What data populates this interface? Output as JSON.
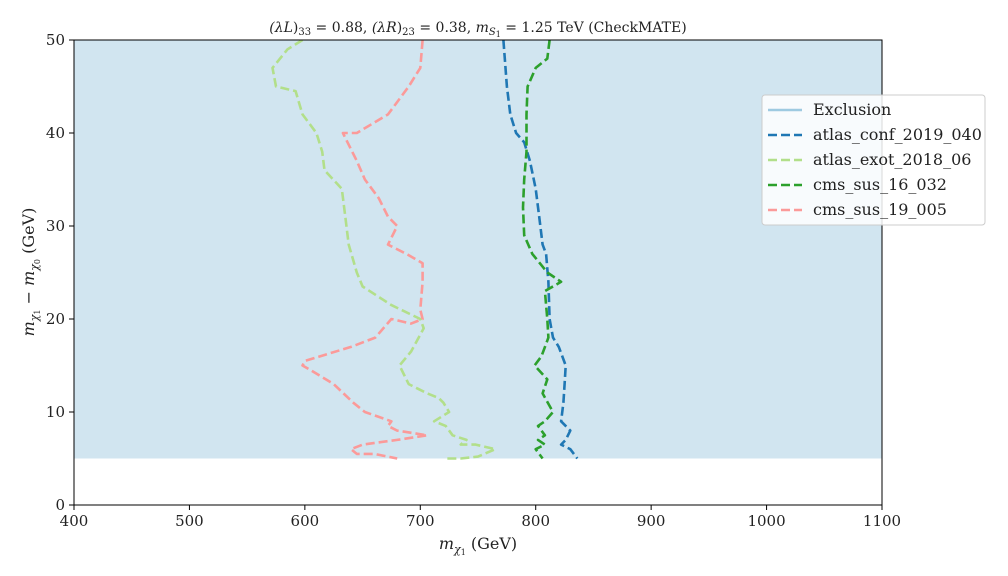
{
  "chart_data": {
    "type": "line",
    "title": "(λ_L)33 = 0.88, (λ_R)23 = 0.38, m_S1 = 1.25 TeV (CheckMATE)",
    "title_parts": {
      "lambda_L": "(λ",
      "lambda_L_sub": "L",
      "lambda_L_idx": "33",
      "lambda_L_val": " = 0.88, ",
      "lambda_R": "(λ",
      "lambda_R_sub": "R",
      "lambda_R_idx": "23",
      "lambda_R_val": " = 0.38, ",
      "m": "m",
      "m_sub1": "S",
      "m_sub2": "1",
      "m_val": " = 1.25 ",
      "suffix": "TeV (CheckMATE)"
    },
    "xlabel": "m_χ1 (GeV)",
    "xlabel_parts": {
      "m": "m",
      "sub1": "χ",
      "sub2": "1",
      "unit": " (GeV)"
    },
    "ylabel": "m_χ1 − m_χ0 (GeV)",
    "ylabel_parts": {
      "m1": "m",
      "s1a": "χ",
      "s1b": "1",
      "minus": " − ",
      "m2": "m",
      "s2a": "χ",
      "s2b": "0",
      "unit": " (GeV)"
    },
    "xlim": [
      400,
      1100
    ],
    "ylim": [
      0,
      50
    ],
    "xticks": [
      400,
      500,
      600,
      700,
      800,
      900,
      1000,
      1100
    ],
    "yticks": [
      0,
      10,
      20,
      30,
      40,
      50
    ],
    "legend_position": "right, upper",
    "exclusion": {
      "name": "Exclusion",
      "color": "#d1e5f0",
      "legend_color": "#9ecae1",
      "polygon": [
        [
          400,
          5
        ],
        [
          400,
          50
        ],
        [
          1100,
          50
        ],
        [
          1100,
          5
        ]
      ],
      "edge_note": ""
    },
    "series": [
      {
        "name": "atlas_conf_2019_040",
        "color": "#1f77b4",
        "points": [
          [
            772,
            50
          ],
          [
            775,
            45
          ],
          [
            778,
            42
          ],
          [
            783,
            40
          ],
          [
            790,
            39
          ],
          [
            795,
            37
          ],
          [
            800,
            34
          ],
          [
            803,
            31
          ],
          [
            806,
            28
          ],
          [
            809,
            27
          ],
          [
            811,
            24
          ],
          [
            812,
            20
          ],
          [
            815,
            18
          ],
          [
            820,
            17
          ],
          [
            826,
            15
          ],
          [
            825,
            13
          ],
          [
            824,
            11
          ],
          [
            822,
            9
          ],
          [
            830,
            8
          ],
          [
            826,
            7
          ],
          [
            822,
            6.5
          ],
          [
            830,
            6
          ],
          [
            836,
            5
          ]
        ]
      },
      {
        "name": "atlas_exot_2018_06",
        "color": "#b2df8a",
        "points": [
          [
            598,
            50
          ],
          [
            585,
            49
          ],
          [
            572,
            47
          ],
          [
            575,
            45
          ],
          [
            592,
            44.5
          ],
          [
            598,
            42
          ],
          [
            610,
            40
          ],
          [
            615,
            38
          ],
          [
            617,
            36
          ],
          [
            632,
            34
          ],
          [
            635,
            31
          ],
          [
            638,
            28
          ],
          [
            645,
            25
          ],
          [
            650,
            23.5
          ],
          [
            675,
            21.5
          ],
          [
            700,
            20
          ],
          [
            703,
            19
          ],
          [
            692,
            16.5
          ],
          [
            682,
            15
          ],
          [
            690,
            13
          ],
          [
            706,
            12
          ],
          [
            716,
            11.5
          ],
          [
            720,
            11
          ],
          [
            725,
            10
          ],
          [
            712,
            9
          ],
          [
            722,
            8.5
          ],
          [
            728,
            7.5
          ],
          [
            740,
            7
          ],
          [
            735,
            6.5
          ],
          [
            748,
            6.5
          ],
          [
            765,
            6
          ],
          [
            750,
            5.2
          ],
          [
            735,
            5
          ],
          [
            720,
            5
          ]
        ]
      },
      {
        "name": "cms_sus_16_032",
        "color": "#2ca02c",
        "points": [
          [
            812,
            50
          ],
          [
            810,
            48
          ],
          [
            800,
            47
          ],
          [
            793,
            45
          ],
          [
            792,
            42
          ],
          [
            792,
            38
          ],
          [
            790,
            35
          ],
          [
            789,
            32
          ],
          [
            790,
            29
          ],
          [
            797,
            27
          ],
          [
            810,
            25
          ],
          [
            822,
            24
          ],
          [
            808,
            23
          ],
          [
            810,
            20
          ],
          [
            811,
            18
          ],
          [
            805,
            16
          ],
          [
            799,
            15
          ],
          [
            810,
            13.5
          ],
          [
            806,
            12
          ],
          [
            815,
            10
          ],
          [
            808,
            9
          ],
          [
            802,
            8.5
          ],
          [
            808,
            7.5
          ],
          [
            802,
            7
          ],
          [
            808,
            6.5
          ],
          [
            800,
            6
          ],
          [
            806,
            5
          ]
        ]
      },
      {
        "name": "cms_sus_19_005",
        "color": "#fb9a99",
        "points": [
          [
            702,
            50
          ],
          [
            700,
            47
          ],
          [
            690,
            45
          ],
          [
            672,
            42
          ],
          [
            645,
            40
          ],
          [
            633,
            40
          ],
          [
            645,
            37
          ],
          [
            652,
            35
          ],
          [
            664,
            33
          ],
          [
            672,
            31
          ],
          [
            680,
            30
          ],
          [
            672,
            28
          ],
          [
            688,
            27
          ],
          [
            702,
            26
          ],
          [
            702,
            24
          ],
          [
            700,
            21
          ],
          [
            702,
            20
          ],
          [
            692,
            19.5
          ],
          [
            675,
            20
          ],
          [
            661,
            18
          ],
          [
            640,
            17
          ],
          [
            600,
            15.5
          ],
          [
            598,
            15
          ],
          [
            605,
            14.5
          ],
          [
            625,
            13
          ],
          [
            642,
            11
          ],
          [
            652,
            10
          ],
          [
            675,
            9
          ],
          [
            672,
            8.5
          ],
          [
            680,
            8
          ],
          [
            706,
            7.5
          ],
          [
            680,
            7
          ],
          [
            650,
            6.5
          ],
          [
            640,
            6
          ],
          [
            645,
            5.5
          ],
          [
            660,
            5.5
          ],
          [
            680,
            5
          ]
        ]
      }
    ]
  }
}
